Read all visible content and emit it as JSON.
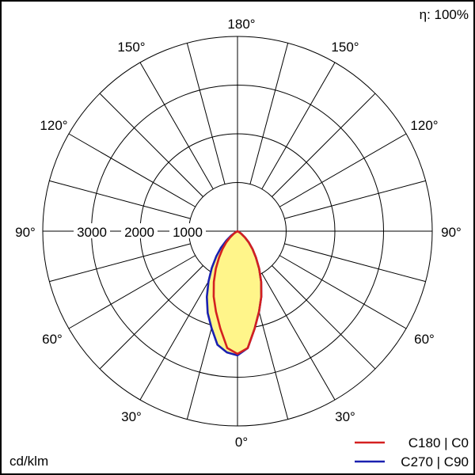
{
  "chart_data": {
    "type": "polar-luminous-intensity",
    "efficiency_label": "η: 100%",
    "unit_label": "cd/klm",
    "radial_max": 4000,
    "radial_ticks": [
      1000,
      2000,
      3000
    ],
    "radial_tick_labels": [
      "1000",
      "2000",
      "3000"
    ],
    "angle_step_deg": 15,
    "angle_labels": {
      "bottom": "0°",
      "top": "180°",
      "left": "90°",
      "right": "90°",
      "lower_left_30": "30°",
      "lower_right_30": "30°",
      "lower_left_60": "60°",
      "lower_right_60": "60°",
      "upper_left_120": "120°",
      "upper_right_120": "120°",
      "upper_left_150": "150°",
      "upper_right_150": "150°"
    },
    "series": [
      {
        "name": "C180 | C0",
        "color": "#d42020",
        "angles_deg": [
          0,
          5,
          10,
          15,
          20,
          25,
          30,
          35,
          40,
          45,
          50,
          55,
          60
        ],
        "right_values": [
          2520,
          2410,
          2030,
          1710,
          1430,
          1150,
          890,
          660,
          480,
          330,
          200,
          100,
          40
        ],
        "left_values": [
          2520,
          2410,
          2030,
          1710,
          1430,
          1150,
          890,
          660,
          480,
          330,
          200,
          100,
          40
        ]
      },
      {
        "name": "C270 | C90",
        "color": "#1a20b0",
        "angles_deg": [
          0,
          5,
          10,
          15,
          20,
          25,
          30,
          35,
          40,
          45,
          50,
          55,
          60
        ],
        "right_values": [
          2520,
          2410,
          2030,
          1710,
          1430,
          1150,
          890,
          660,
          480,
          330,
          200,
          100,
          40
        ],
        "left_values": [
          2550,
          2500,
          2370,
          2060,
          1790,
          1490,
          1190,
          920,
          680,
          480,
          300,
          160,
          60
        ]
      }
    ],
    "fill_color": "#fff58a",
    "legend_position": "bottom-right"
  }
}
